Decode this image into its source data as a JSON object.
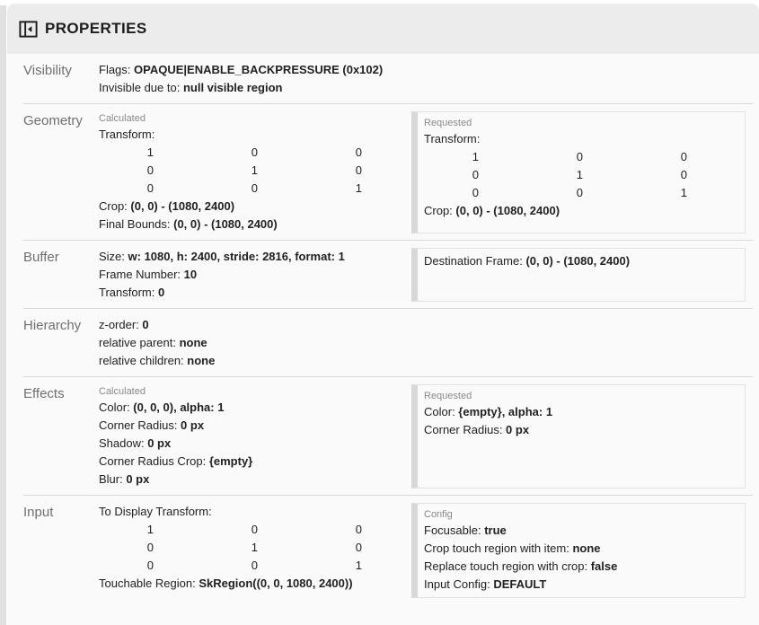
{
  "header": {
    "title": "PROPERTIES",
    "icon": "panel-collapse-icon"
  },
  "colors": {
    "page_bg": "#ffffff",
    "panel_bg": "#fafafa",
    "header_bg": "#ececec",
    "edge_strip": "#e0e0e0",
    "divider": "#d9d9d9",
    "box_border": "#e2e2e2",
    "box_strip": "#d8d8d8",
    "text": "#212121",
    "section_label": "#6f6f6f",
    "group_label": "#8a8a8a"
  },
  "sections": [
    {
      "id": "visibility",
      "label": "Visibility",
      "columns": [
        {
          "id": "main",
          "style": "plain",
          "items": [
            {
              "type": "pair",
              "label": "Flags: ",
              "value": "OPAQUE|ENABLE_BACKPRESSURE (0x102)"
            },
            {
              "type": "pair",
              "label": "Invisible due to: ",
              "value": "null visible region"
            }
          ]
        }
      ]
    },
    {
      "id": "geometry",
      "label": "Geometry",
      "columns": [
        {
          "id": "calculated",
          "style": "plain",
          "group_label": "Calculated",
          "items": [
            {
              "type": "text",
              "text": "Transform:"
            },
            {
              "type": "matrix",
              "rows": [
                [
                  "1",
                  "0",
                  "0"
                ],
                [
                  "0",
                  "1",
                  "0"
                ],
                [
                  "0",
                  "0",
                  "1"
                ]
              ]
            },
            {
              "type": "pair",
              "label": "Crop: ",
              "value": "(0, 0) - (1080, 2400)"
            },
            {
              "type": "pair",
              "label": "Final Bounds: ",
              "value": "(0, 0) - (1080, 2400)"
            }
          ]
        },
        {
          "id": "requested",
          "style": "box",
          "group_label": "Requested",
          "items": [
            {
              "type": "text",
              "text": "Transform:"
            },
            {
              "type": "matrix",
              "rows": [
                [
                  "1",
                  "0",
                  "0"
                ],
                [
                  "0",
                  "1",
                  "0"
                ],
                [
                  "0",
                  "0",
                  "1"
                ]
              ]
            },
            {
              "type": "pair",
              "label": "Crop: ",
              "value": "(0, 0) - (1080, 2400)"
            }
          ]
        }
      ]
    },
    {
      "id": "buffer",
      "label": "Buffer",
      "columns": [
        {
          "id": "main",
          "style": "plain",
          "items": [
            {
              "type": "pair",
              "label": "Size: ",
              "value": "w: 1080, h: 2400, stride: 2816, format: 1"
            },
            {
              "type": "pair",
              "label": "Frame Number: ",
              "value": "10"
            },
            {
              "type": "pair",
              "label": "Transform: ",
              "value": "0"
            }
          ]
        },
        {
          "id": "requested",
          "style": "box",
          "items": [
            {
              "type": "pair",
              "label": "Destination Frame: ",
              "value": "(0, 0) - (1080, 2400)"
            }
          ]
        }
      ]
    },
    {
      "id": "hierarchy",
      "label": "Hierarchy",
      "columns": [
        {
          "id": "main",
          "style": "plain",
          "items": [
            {
              "type": "pair",
              "label": "z-order: ",
              "value": "0"
            },
            {
              "type": "pair",
              "label": "relative parent: ",
              "value": "none"
            },
            {
              "type": "pair",
              "label": "relative children: ",
              "value": "none"
            }
          ]
        }
      ]
    },
    {
      "id": "effects",
      "label": "Effects",
      "columns": [
        {
          "id": "calculated",
          "style": "plain",
          "group_label": "Calculated",
          "items": [
            {
              "type": "pair",
              "label": "Color: ",
              "value": "(0, 0, 0), alpha: 1"
            },
            {
              "type": "pair",
              "label": "Corner Radius: ",
              "value": "0 px"
            },
            {
              "type": "pair",
              "label": "Shadow: ",
              "value": "0 px"
            },
            {
              "type": "pair",
              "label": "Corner Radius Crop: ",
              "value": "{empty}"
            },
            {
              "type": "pair",
              "label": "Blur: ",
              "value": "0 px"
            }
          ]
        },
        {
          "id": "requested",
          "style": "box",
          "group_label": "Requested",
          "items": [
            {
              "type": "pair",
              "label": "Color: ",
              "value": "{empty}, alpha: 1"
            },
            {
              "type": "pair",
              "label": "Corner Radius: ",
              "value": "0 px"
            }
          ]
        }
      ]
    },
    {
      "id": "input",
      "label": "Input",
      "columns": [
        {
          "id": "main",
          "style": "plain",
          "items": [
            {
              "type": "text",
              "text": "To Display Transform:"
            },
            {
              "type": "matrix",
              "rows": [
                [
                  "1",
                  "0",
                  "0"
                ],
                [
                  "0",
                  "1",
                  "0"
                ],
                [
                  "0",
                  "0",
                  "1"
                ]
              ]
            },
            {
              "type": "pair",
              "label": "Touchable Region: ",
              "value": "SkRegion((0, 0, 1080, 2400))"
            }
          ]
        },
        {
          "id": "config",
          "style": "box",
          "group_label": "Config",
          "items": [
            {
              "type": "pair",
              "label": "Focusable: ",
              "value": "true"
            },
            {
              "type": "pair",
              "label": "Crop touch region with item: ",
              "value": "none"
            },
            {
              "type": "pair",
              "label": "Replace touch region with crop: ",
              "value": "false"
            },
            {
              "type": "pair",
              "label": "Input Config: ",
              "value": "DEFAULT"
            }
          ]
        }
      ]
    }
  ]
}
